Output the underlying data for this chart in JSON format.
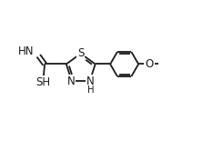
{
  "background_color": "#ffffff",
  "line_color": "#1a1a1a",
  "line_width": 1.3,
  "font_size": 8.5,
  "figsize": [
    2.34,
    1.55
  ],
  "dpi": 100,
  "xlim": [
    0.0,
    1.15
  ],
  "ylim": [
    0.1,
    0.95
  ]
}
